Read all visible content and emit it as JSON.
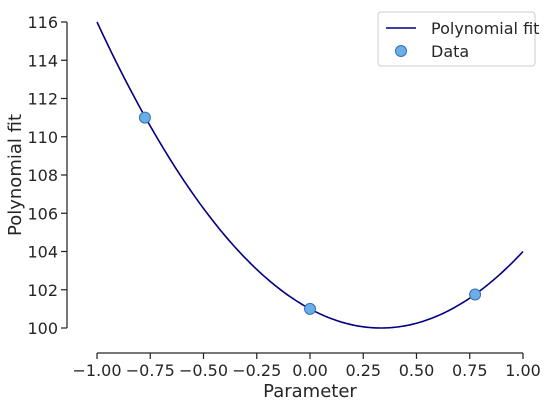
{
  "chart_data": {
    "type": "line",
    "title": "",
    "xlabel": "Parameter",
    "ylabel": "Polynomial fit",
    "xlim": [
      -1.0,
      1.0
    ],
    "ylim": [
      100,
      116
    ],
    "x_ticks": [
      -1.0,
      -0.75,
      -0.5,
      -0.25,
      0.0,
      0.25,
      0.5,
      0.75,
      1.0
    ],
    "x_tick_labels": [
      "−1.00",
      "−0.75",
      "−0.50",
      "−0.25",
      "0.00",
      "0.25",
      "0.50",
      "0.75",
      "1.00"
    ],
    "y_ticks": [
      100,
      102,
      104,
      106,
      108,
      110,
      112,
      114,
      116
    ],
    "y_tick_labels": [
      "100",
      "102",
      "104",
      "106",
      "108",
      "110",
      "112",
      "114",
      "116"
    ],
    "grid": false,
    "legend_position": "top-right",
    "series": [
      {
        "name": "Polynomial fit",
        "kind": "line",
        "color": "#000080",
        "coefficients": [
          101,
          -6,
          9
        ],
        "x_range": [
          -1.0,
          1.0
        ]
      },
      {
        "name": "Data",
        "kind": "scatter",
        "color": "#6aaee8",
        "edge_color": "#3a6fb0",
        "x": [
          -0.775,
          0.0,
          0.775
        ],
        "y": [
          111.0,
          101.0,
          101.75
        ]
      }
    ]
  }
}
